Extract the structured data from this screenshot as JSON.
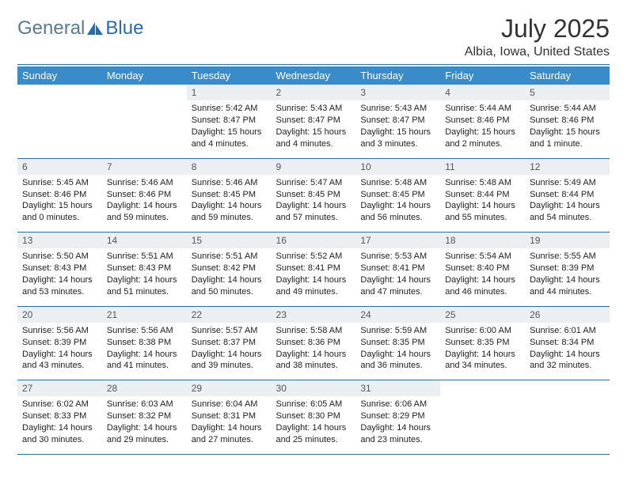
{
  "logo": {
    "text1": "General",
    "text2": "Blue"
  },
  "title": "July 2025",
  "location": "Albia, Iowa, United States",
  "colors": {
    "header_bg": "#3a8bc9",
    "header_text": "#ffffff",
    "daynum_bg": "#eceff1",
    "divider": "#2a6ca8",
    "logo_gray": "#5b7a8c",
    "logo_blue": "#2a6ca8"
  },
  "weekdays": [
    "Sunday",
    "Monday",
    "Tuesday",
    "Wednesday",
    "Thursday",
    "Friday",
    "Saturday"
  ],
  "weeks": [
    [
      null,
      null,
      {
        "n": "1",
        "sr": "5:42 AM",
        "ss": "8:47 PM",
        "dl": "15 hours and 4 minutes."
      },
      {
        "n": "2",
        "sr": "5:43 AM",
        "ss": "8:47 PM",
        "dl": "15 hours and 4 minutes."
      },
      {
        "n": "3",
        "sr": "5:43 AM",
        "ss": "8:47 PM",
        "dl": "15 hours and 3 minutes."
      },
      {
        "n": "4",
        "sr": "5:44 AM",
        "ss": "8:46 PM",
        "dl": "15 hours and 2 minutes."
      },
      {
        "n": "5",
        "sr": "5:44 AM",
        "ss": "8:46 PM",
        "dl": "15 hours and 1 minute."
      }
    ],
    [
      {
        "n": "6",
        "sr": "5:45 AM",
        "ss": "8:46 PM",
        "dl": "15 hours and 0 minutes."
      },
      {
        "n": "7",
        "sr": "5:46 AM",
        "ss": "8:46 PM",
        "dl": "14 hours and 59 minutes."
      },
      {
        "n": "8",
        "sr": "5:46 AM",
        "ss": "8:45 PM",
        "dl": "14 hours and 59 minutes."
      },
      {
        "n": "9",
        "sr": "5:47 AM",
        "ss": "8:45 PM",
        "dl": "14 hours and 57 minutes."
      },
      {
        "n": "10",
        "sr": "5:48 AM",
        "ss": "8:45 PM",
        "dl": "14 hours and 56 minutes."
      },
      {
        "n": "11",
        "sr": "5:48 AM",
        "ss": "8:44 PM",
        "dl": "14 hours and 55 minutes."
      },
      {
        "n": "12",
        "sr": "5:49 AM",
        "ss": "8:44 PM",
        "dl": "14 hours and 54 minutes."
      }
    ],
    [
      {
        "n": "13",
        "sr": "5:50 AM",
        "ss": "8:43 PM",
        "dl": "14 hours and 53 minutes."
      },
      {
        "n": "14",
        "sr": "5:51 AM",
        "ss": "8:43 PM",
        "dl": "14 hours and 51 minutes."
      },
      {
        "n": "15",
        "sr": "5:51 AM",
        "ss": "8:42 PM",
        "dl": "14 hours and 50 minutes."
      },
      {
        "n": "16",
        "sr": "5:52 AM",
        "ss": "8:41 PM",
        "dl": "14 hours and 49 minutes."
      },
      {
        "n": "17",
        "sr": "5:53 AM",
        "ss": "8:41 PM",
        "dl": "14 hours and 47 minutes."
      },
      {
        "n": "18",
        "sr": "5:54 AM",
        "ss": "8:40 PM",
        "dl": "14 hours and 46 minutes."
      },
      {
        "n": "19",
        "sr": "5:55 AM",
        "ss": "8:39 PM",
        "dl": "14 hours and 44 minutes."
      }
    ],
    [
      {
        "n": "20",
        "sr": "5:56 AM",
        "ss": "8:39 PM",
        "dl": "14 hours and 43 minutes."
      },
      {
        "n": "21",
        "sr": "5:56 AM",
        "ss": "8:38 PM",
        "dl": "14 hours and 41 minutes."
      },
      {
        "n": "22",
        "sr": "5:57 AM",
        "ss": "8:37 PM",
        "dl": "14 hours and 39 minutes."
      },
      {
        "n": "23",
        "sr": "5:58 AM",
        "ss": "8:36 PM",
        "dl": "14 hours and 38 minutes."
      },
      {
        "n": "24",
        "sr": "5:59 AM",
        "ss": "8:35 PM",
        "dl": "14 hours and 36 minutes."
      },
      {
        "n": "25",
        "sr": "6:00 AM",
        "ss": "8:35 PM",
        "dl": "14 hours and 34 minutes."
      },
      {
        "n": "26",
        "sr": "6:01 AM",
        "ss": "8:34 PM",
        "dl": "14 hours and 32 minutes."
      }
    ],
    [
      {
        "n": "27",
        "sr": "6:02 AM",
        "ss": "8:33 PM",
        "dl": "14 hours and 30 minutes."
      },
      {
        "n": "28",
        "sr": "6:03 AM",
        "ss": "8:32 PM",
        "dl": "14 hours and 29 minutes."
      },
      {
        "n": "29",
        "sr": "6:04 AM",
        "ss": "8:31 PM",
        "dl": "14 hours and 27 minutes."
      },
      {
        "n": "30",
        "sr": "6:05 AM",
        "ss": "8:30 PM",
        "dl": "14 hours and 25 minutes."
      },
      {
        "n": "31",
        "sr": "6:06 AM",
        "ss": "8:29 PM",
        "dl": "14 hours and 23 minutes."
      },
      null,
      null
    ]
  ],
  "labels": {
    "sunrise": "Sunrise: ",
    "sunset": "Sunset: ",
    "daylight": "Daylight: "
  }
}
